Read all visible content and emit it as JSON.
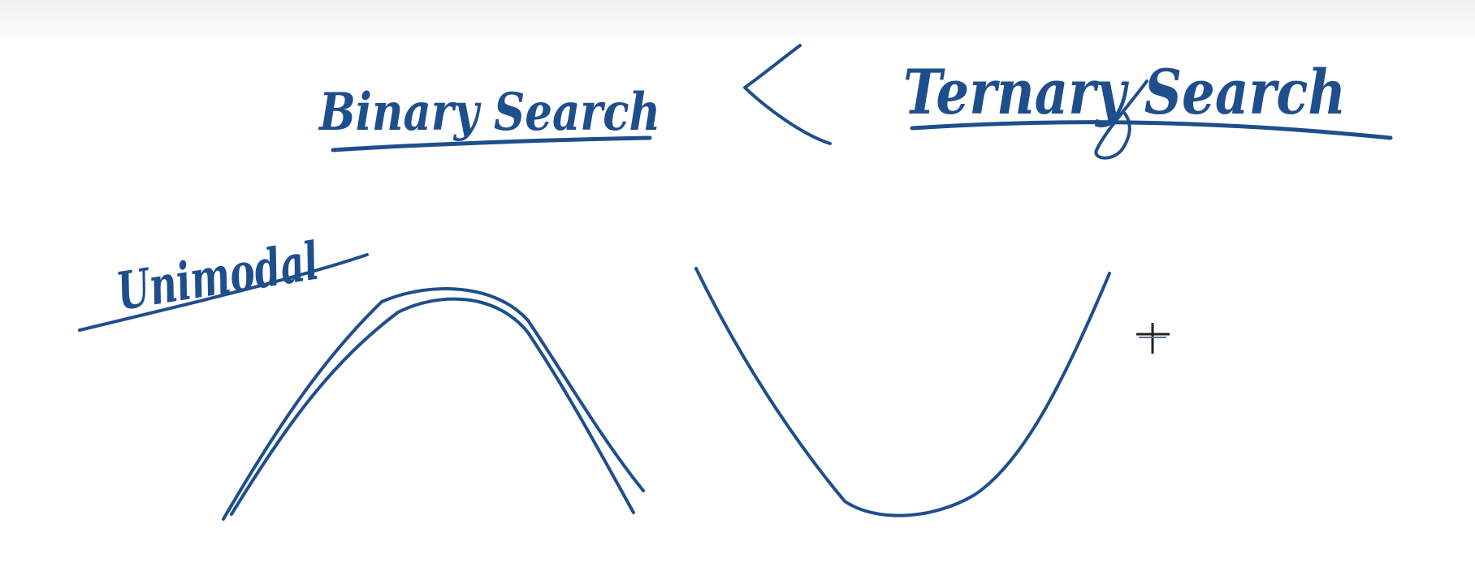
{
  "board": {
    "ink_color": "#1f4e8c",
    "background_color": "#ffffff",
    "top_strip_color": "#f2f2f2"
  },
  "handwriting": {
    "left_label": "Binary Search",
    "relation_symbol": "<",
    "right_label": "Ternary Search",
    "side_label": "Unimodal"
  },
  "sketches": {
    "left_curve": "hill",
    "right_curve": "valley"
  },
  "cursor": {
    "icon": "crosshair-cursor-icon"
  }
}
